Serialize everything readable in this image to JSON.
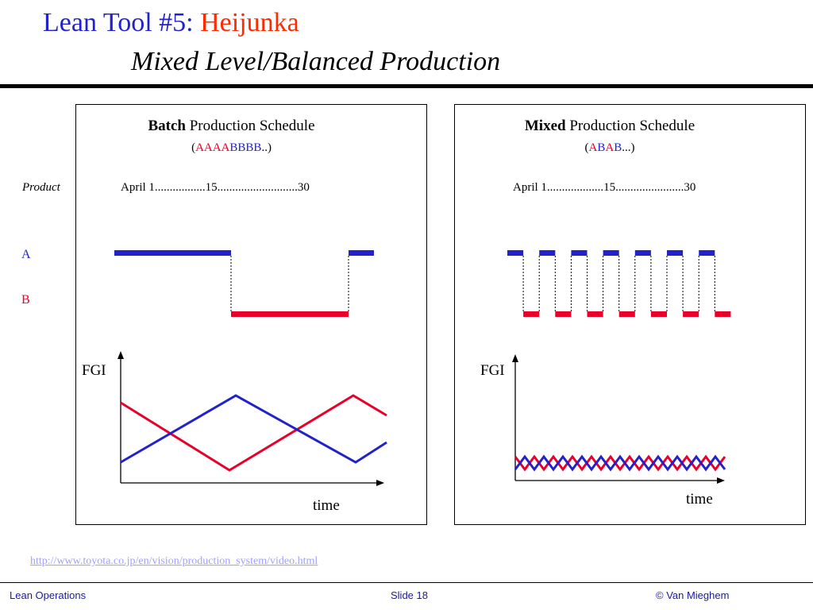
{
  "title": {
    "prefix": "Lean Tool #5: ",
    "accent": "Heijunka",
    "subtitle": "Mixed Level/Balanced Production"
  },
  "row_header": "Product",
  "row_labels": {
    "a": "A",
    "b": "B"
  },
  "colors": {
    "blue": "#2222cc",
    "red": "#e8002a",
    "title_blue": "#2222cc",
    "title_accent": "#ff2a00"
  },
  "batch": {
    "heading_bold": "Batch",
    "heading_rest": " Production Schedule",
    "seq_open": "(",
    "seq_red": "AAAA",
    "seq_blue": "BBBB",
    "seq_close": "..)",
    "dates": "April 1.................15...........................30",
    "fgi_label": "FGI",
    "time_label": "time"
  },
  "mixed": {
    "heading_bold": "Mixed",
    "heading_rest": " Production Schedule",
    "seq_open": "(",
    "seq_a1": "A",
    "seq_b1": "B",
    "seq_a2": "A",
    "seq_b2": "B",
    "seq_close": "...)",
    "dates": "April 1...................15.......................30",
    "fgi_label": "FGI",
    "time_label": "time"
  },
  "link": "http://www.toyota.co.jp/en/vision/production_system/video.html",
  "footer": {
    "left": "Lean Operations",
    "center": "Slide 18",
    "right": "© Van Mieghem"
  }
}
